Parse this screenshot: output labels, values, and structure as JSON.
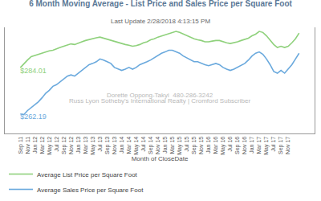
{
  "chart_data": {
    "type": "line",
    "title": "6 Month Moving Average - List Price and Sales Price per Square Foot",
    "subtitle": "Last Update 2/28/2018 4:13:15 PM",
    "x_label": "Month of CloseDate",
    "annotations": [
      "Dorette Oppong-Takyi  480-286-3242",
      "Russ Lyon Sotheby's International Realty | Cromford Subscriber"
    ],
    "categories": [
      "Sep 11",
      null,
      "Nov 11",
      null,
      "Jan 12",
      null,
      "Mar 12",
      null,
      "May 12",
      null,
      "Jul 12",
      null,
      "Sep 12",
      null,
      "Nov 12",
      null,
      "Jan 13",
      null,
      "Mar 13",
      null,
      "May 13",
      null,
      "Jul 13",
      null,
      "Sep 13",
      null,
      "Nov 13",
      null,
      "Jan 14",
      null,
      "Mar 14",
      null,
      "May 14",
      null,
      "Jul 14",
      null,
      "Sep 14",
      null,
      "Nov 14",
      null,
      "Jan 15",
      null,
      "Mar 15",
      null,
      "May 15",
      null,
      "Jul 15",
      null,
      "Sep 15",
      null,
      "Nov 15",
      null,
      "Jan 16",
      null,
      "Mar 16",
      null,
      "May 16",
      null,
      "Jul 16",
      null,
      "Sep 16",
      null,
      "Nov 16",
      null,
      "Jan 17",
      null,
      "Mar 17",
      null,
      "May 17",
      null,
      "Jul 17",
      null,
      "Sep 17",
      null,
      "Nov 17",
      null,
      null,
      null
    ],
    "series": [
      {
        "name": "Average List Price per Square Foot",
        "color": "#8fd17c",
        "values": [
          284.01,
          286.0,
          287.6,
          289.2,
          289.8,
          290.3,
          290.8,
          291.4,
          291.9,
          292.2,
          293.0,
          293.5,
          294.1,
          294.6,
          295.2,
          294.9,
          295.7,
          296.2,
          296.8,
          297.3,
          297.6,
          298.1,
          298.4,
          297.9,
          297.3,
          296.8,
          296.2,
          295.7,
          295.2,
          294.9,
          294.6,
          294.1,
          294.4,
          294.9,
          295.7,
          296.2,
          297.1,
          297.6,
          298.4,
          299.0,
          299.5,
          300.0,
          300.6,
          301.1,
          300.6,
          299.8,
          299.0,
          298.1,
          297.6,
          297.1,
          296.8,
          296.2,
          296.2,
          296.5,
          296.8,
          296.8,
          296.2,
          295.7,
          295.4,
          295.7,
          296.2,
          296.8,
          297.3,
          297.9,
          299.0,
          299.8,
          301.1,
          300.6,
          299.0,
          296.8,
          294.9,
          293.5,
          294.1,
          293.5,
          294.1,
          295.7,
          297.6,
          300.3
        ],
        "value_labels": [
          "$284.01",
          null,
          null,
          null,
          null,
          null,
          null,
          null,
          null,
          null,
          null,
          null,
          null,
          null,
          null,
          null,
          null,
          null,
          null,
          null,
          null,
          null,
          null,
          null,
          null,
          null,
          null,
          null,
          null,
          null,
          null,
          null,
          null,
          null,
          null,
          null,
          null,
          null,
          null,
          null,
          null,
          null,
          null,
          null,
          null,
          null,
          null,
          null,
          null,
          null,
          null,
          null,
          null,
          null,
          null,
          null,
          null,
          null,
          null,
          null,
          null,
          null,
          null,
          null,
          null,
          null,
          null,
          null,
          null,
          null,
          null,
          null,
          null,
          null,
          null,
          null,
          null,
          null
        ]
      },
      {
        "name": "Average Sales Price per Square Foot",
        "color": "#6aa9dd",
        "values": [
          262.19,
          261.9,
          263.8,
          265.2,
          266.5,
          267.9,
          269.8,
          271.9,
          273.3,
          275.2,
          276.0,
          277.3,
          278.7,
          280.0,
          280.6,
          280.0,
          281.4,
          282.7,
          284.1,
          285.4,
          286.0,
          286.8,
          288.1,
          287.6,
          286.8,
          286.0,
          284.1,
          283.3,
          282.7,
          283.3,
          284.1,
          283.3,
          284.1,
          285.4,
          286.0,
          286.8,
          287.6,
          288.7,
          289.5,
          290.8,
          291.4,
          292.2,
          292.2,
          291.6,
          290.8,
          289.5,
          288.7,
          287.6,
          286.8,
          286.8,
          286.0,
          285.4,
          284.9,
          285.4,
          286.0,
          285.4,
          284.1,
          283.3,
          282.7,
          283.3,
          284.1,
          284.9,
          286.0,
          287.6,
          289.5,
          290.8,
          291.4,
          290.3,
          288.1,
          285.4,
          282.2,
          281.4,
          282.7,
          281.4,
          283.3,
          285.4,
          288.1,
          290.8
        ],
        "value_labels": [
          "$262.19",
          null,
          null,
          null,
          null,
          null,
          null,
          null,
          null,
          null,
          null,
          null,
          null,
          null,
          null,
          null,
          null,
          null,
          null,
          null,
          null,
          null,
          null,
          null,
          null,
          null,
          null,
          null,
          null,
          null,
          null,
          null,
          null,
          null,
          null,
          null,
          null,
          null,
          null,
          null,
          null,
          null,
          null,
          null,
          null,
          null,
          null,
          null,
          null,
          null,
          null,
          null,
          null,
          null,
          null,
          null,
          null,
          null,
          null,
          null,
          null,
          null,
          null,
          null,
          null,
          null,
          null,
          null,
          null,
          null,
          null,
          null,
          null,
          null,
          null,
          null,
          null,
          null
        ]
      }
    ],
    "ylim": [
      253,
      303
    ],
    "data_labels": true,
    "tick_labels": "x",
    "grid": false,
    "legend": "bottom"
  }
}
